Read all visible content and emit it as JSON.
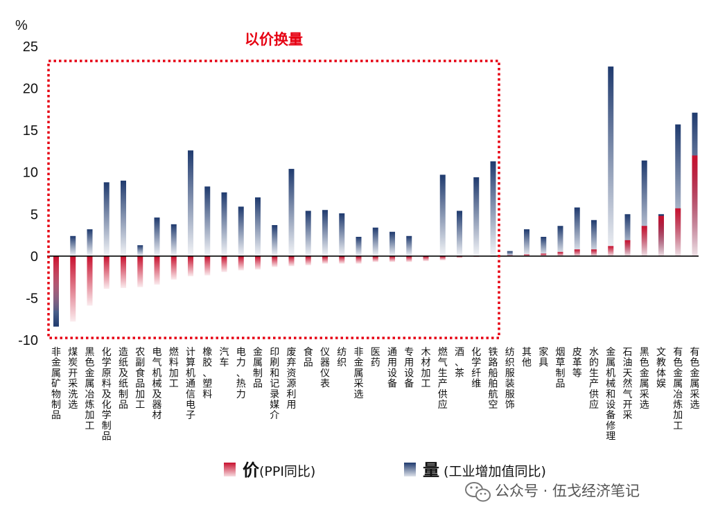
{
  "chart_data": {
    "type": "bar",
    "unit": "%",
    "ylim": [
      -10,
      25
    ],
    "yticks": [
      25,
      20,
      15,
      10,
      5,
      0,
      -5,
      -10
    ],
    "categories": [
      "非金属矿物制品",
      "煤炭开采洗选",
      "黑色金属冶炼加工",
      "化学原料及化学制品",
      "造纸及纸制品",
      "农副食品加工",
      "电气机械及器材",
      "燃料加工",
      "计算机通信电子",
      "橡胶、塑料",
      "汽车",
      "电力、热力",
      "金属制品",
      "印刷和记录媒介",
      "废弃资源利用",
      "食品",
      "仪器仪表",
      "纺织",
      "非金属采选",
      "医药",
      "通用设备",
      "专用设备",
      "木材加工",
      "燃气生产供应",
      "酒、茶",
      "化学纤维",
      "铁路船舶航空",
      "纺织服装服饰",
      "其他",
      "家具",
      "烟草制品",
      "皮革等",
      "水的生产供应",
      "金属机械和设备修理",
      "石油天然气开采",
      "黑色金属采选",
      "文教体娱",
      "有色金属冶炼加工",
      "有色金属采选"
    ],
    "series": [
      {
        "name": "价(PPI同比)",
        "color": "#c8102e",
        "values": [
          -6.5,
          -7.8,
          -5.9,
          -3.9,
          -3.8,
          -3.7,
          -3.4,
          -2.8,
          -2.4,
          -2.3,
          -1.9,
          -1.7,
          -1.6,
          -1.3,
          -1.2,
          -1.1,
          -0.9,
          -0.9,
          -0.9,
          -0.7,
          -0.7,
          -0.7,
          -0.6,
          -0.5,
          -0.2,
          -0.1,
          -0.1,
          0.1,
          0.2,
          0.3,
          0.5,
          0.8,
          0.8,
          1.2,
          1.9,
          3.6,
          4.8,
          5.7,
          12.0
        ]
      },
      {
        "name": "量 (工业增加值同比)",
        "color": "#1f3a6e",
        "values": [
          -8.4,
          2.4,
          3.2,
          8.8,
          9.0,
          1.3,
          4.6,
          3.8,
          12.6,
          8.3,
          7.6,
          5.9,
          7.0,
          3.7,
          10.4,
          5.4,
          5.5,
          5.1,
          2.3,
          3.4,
          2.9,
          2.4,
          0.0,
          9.7,
          5.4,
          9.4,
          11.3,
          0.6,
          3.2,
          2.3,
          3.6,
          5.8,
          4.3,
          22.6,
          5.0,
          11.4,
          5.0,
          15.7,
          17.1
        ]
      }
    ],
    "legend": {
      "placement": "bottom-center"
    }
  },
  "annotation": {
    "text": "以价换量"
  },
  "legend": {
    "price_big": "价",
    "price_rest": "(PPI同比)",
    "volume_big": "量",
    "volume_rest": " (工业增加值同比)"
  },
  "watermark": {
    "text": "公众号 · 伍戈经济笔记"
  }
}
